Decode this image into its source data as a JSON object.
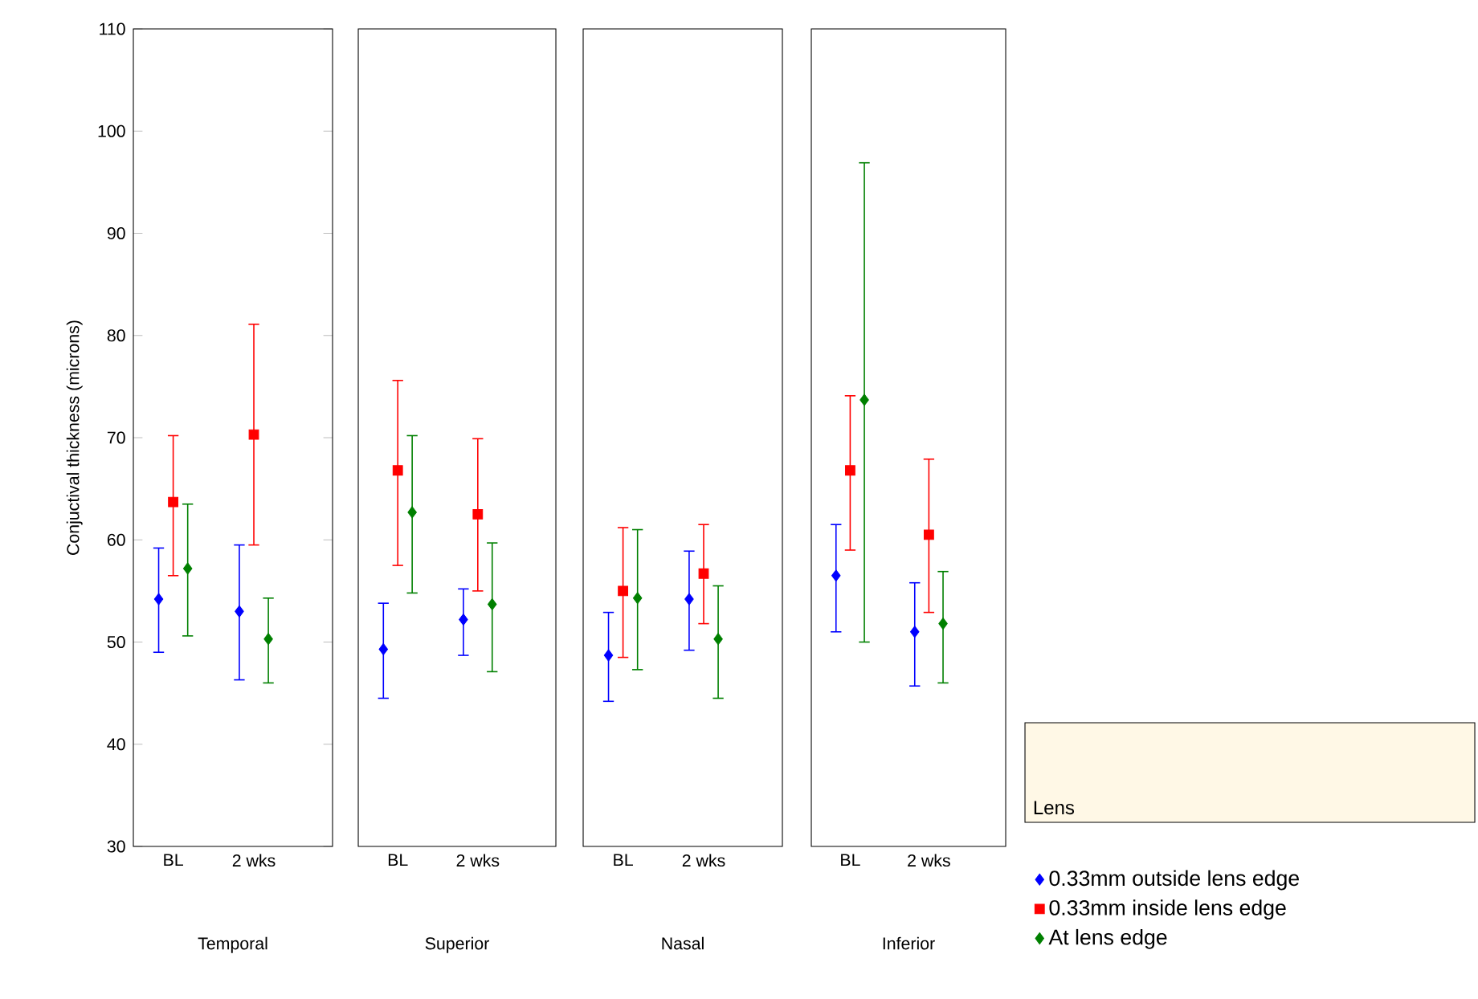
{
  "chart_data": [
    {
      "type": "scatter",
      "categories": [
        "BL",
        "2 wks"
      ],
      "xlabel": "Temporal",
      "ylabel": "Conjuctival thickness (microns)",
      "ylim": [
        30,
        110
      ],
      "yticks": [
        30,
        40,
        50,
        60,
        70,
        80,
        90,
        100,
        110
      ],
      "series": [
        {
          "color": "#0000ff",
          "marker": "diamond",
          "values": [
            54.2,
            53.0
          ],
          "errors": [
            [
              49.0,
              59.2
            ],
            [
              46.3,
              59.5
            ]
          ]
        },
        {
          "color": "#ff0000",
          "marker": "square",
          "values": [
            63.7,
            70.3
          ],
          "errors": [
            [
              56.5,
              70.2
            ],
            [
              59.5,
              81.1
            ]
          ]
        },
        {
          "color": "#008000",
          "marker": "diamond",
          "values": [
            57.2,
            50.3
          ],
          "errors": [
            [
              50.6,
              63.5
            ],
            [
              46.0,
              54.3
            ]
          ]
        }
      ]
    },
    {
      "type": "scatter",
      "categories": [
        "BL",
        "2 wks"
      ],
      "xlabel": "Superior",
      "ylim": [
        30,
        110
      ],
      "yticks": [
        30,
        40,
        50,
        60,
        70,
        80,
        90,
        100,
        110
      ],
      "tick_labels": "x",
      "series": [
        {
          "color": "#0000ff",
          "marker": "diamond",
          "values": [
            49.3,
            52.2
          ],
          "errors": [
            [
              44.5,
              53.8
            ],
            [
              48.7,
              55.2
            ]
          ]
        },
        {
          "color": "#ff0000",
          "marker": "square",
          "values": [
            66.8,
            62.5
          ],
          "errors": [
            [
              57.5,
              75.6
            ],
            [
              55.0,
              69.9
            ]
          ]
        },
        {
          "color": "#008000",
          "marker": "diamond",
          "values": [
            62.7,
            53.7
          ],
          "errors": [
            [
              54.8,
              70.2
            ],
            [
              47.1,
              59.7
            ]
          ]
        }
      ]
    },
    {
      "type": "scatter",
      "categories": [
        "BL",
        "2 wks"
      ],
      "xlabel": "Nasal",
      "ylim": [
        30,
        110
      ],
      "yticks": [
        30,
        40,
        50,
        60,
        70,
        80,
        90,
        100,
        110
      ],
      "tick_labels": "x",
      "series": [
        {
          "color": "#0000ff",
          "marker": "diamond",
          "values": [
            48.7,
            54.2
          ],
          "errors": [
            [
              44.2,
              52.9
            ],
            [
              49.2,
              58.9
            ]
          ]
        },
        {
          "color": "#ff0000",
          "marker": "square",
          "values": [
            55.0,
            56.7
          ],
          "errors": [
            [
              48.5,
              61.2
            ],
            [
              51.8,
              61.5
            ]
          ]
        },
        {
          "color": "#008000",
          "marker": "diamond",
          "values": [
            54.3,
            50.3
          ],
          "errors": [
            [
              47.3,
              61.0
            ],
            [
              44.5,
              55.5
            ]
          ]
        }
      ]
    },
    {
      "type": "scatter",
      "categories": [
        "BL",
        "2 wks"
      ],
      "xlabel": "Inferior",
      "ylim": [
        30,
        110
      ],
      "yticks": [
        30,
        40,
        50,
        60,
        70,
        80,
        90,
        100,
        110
      ],
      "tick_labels": "x",
      "legend": "bottom right",
      "legend_title": "Lens",
      "series": [
        {
          "name": "0.33mm outside lens edge",
          "color": "#0000ff",
          "marker": "diamond",
          "values": [
            56.5,
            51.0
          ],
          "errors": [
            [
              51.0,
              61.5
            ],
            [
              45.7,
              55.8
            ]
          ]
        },
        {
          "name": "0.33mm inside lens edge",
          "color": "#ff0000",
          "marker": "square",
          "values": [
            66.8,
            60.5
          ],
          "errors": [
            [
              59.0,
              74.1
            ],
            [
              52.9,
              67.9
            ]
          ]
        },
        {
          "name": "At lens edge",
          "color": "#008000",
          "marker": "diamond",
          "values": [
            73.7,
            51.8
          ],
          "errors": [
            [
              50.0,
              96.9
            ],
            [
              46.0,
              56.9
            ]
          ]
        }
      ]
    }
  ]
}
